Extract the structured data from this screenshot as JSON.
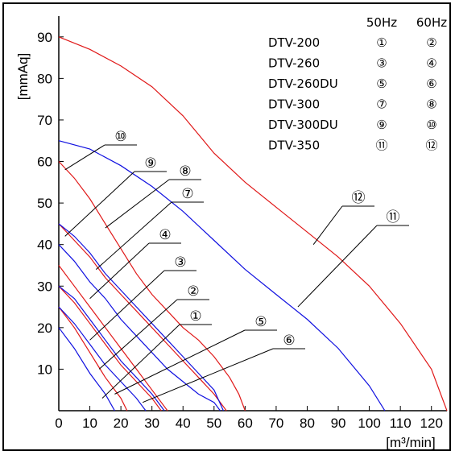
{
  "chart_data": {
    "type": "line",
    "xlabel": "[m³/min]",
    "ylabel": "[mmAq]",
    "xlim": [
      0,
      125
    ],
    "ylim": [
      0,
      95
    ],
    "xticks": [
      0,
      10,
      20,
      30,
      40,
      50,
      60,
      70,
      80,
      90,
      100,
      110,
      120
    ],
    "yticks": [
      10,
      20,
      30,
      40,
      50,
      60,
      70,
      80,
      90
    ],
    "legend": {
      "headers": [
        "50Hz",
        "60Hz"
      ],
      "rows": [
        {
          "model": "DTV-200",
          "hz50": "①",
          "hz60": "②"
        },
        {
          "model": "DTV-260",
          "hz50": "③",
          "hz60": "④"
        },
        {
          "model": "DTV-260DU",
          "hz50": "⑤",
          "hz60": "⑥"
        },
        {
          "model": "DTV-300",
          "hz50": "⑦",
          "hz60": "⑧"
        },
        {
          "model": "DTV-300DU",
          "hz50": "⑨",
          "hz60": "⑩"
        },
        {
          "model": "DTV-350",
          "hz50": "⑪",
          "hz60": "⑫"
        }
      ]
    },
    "colors": {
      "hz50": "#1010e0",
      "hz60": "#e01818"
    },
    "series": [
      {
        "name": "①",
        "color": "blue",
        "points": [
          [
            0,
            20
          ],
          [
            5,
            15
          ],
          [
            10,
            9
          ],
          [
            15,
            4
          ],
          [
            18,
            0
          ]
        ]
      },
      {
        "name": "②",
        "color": "red",
        "points": [
          [
            0,
            25
          ],
          [
            5,
            20
          ],
          [
            10,
            14
          ],
          [
            15,
            8
          ],
          [
            20,
            3
          ],
          [
            22,
            0
          ]
        ]
      },
      {
        "name": "③",
        "color": "blue",
        "points": [
          [
            0,
            25
          ],
          [
            5,
            21
          ],
          [
            10,
            16
          ],
          [
            15,
            11
          ],
          [
            20,
            7
          ],
          [
            25,
            3
          ],
          [
            28,
            0
          ]
        ]
      },
      {
        "name": "④",
        "color": "red",
        "points": [
          [
            0,
            30
          ],
          [
            5,
            26
          ],
          [
            10,
            21
          ],
          [
            15,
            16
          ],
          [
            20,
            11
          ],
          [
            25,
            7
          ],
          [
            30,
            3
          ],
          [
            33,
            0
          ]
        ]
      },
      {
        "name": "⑤",
        "color": "blue",
        "points": [
          [
            0,
            30
          ],
          [
            5,
            27
          ],
          [
            10,
            22
          ],
          [
            15,
            17
          ],
          [
            20,
            12
          ],
          [
            25,
            8
          ],
          [
            30,
            4
          ],
          [
            34,
            0
          ]
        ]
      },
      {
        "name": "⑥",
        "color": "red",
        "points": [
          [
            0,
            35
          ],
          [
            5,
            30
          ],
          [
            10,
            25
          ],
          [
            15,
            20
          ],
          [
            20,
            15
          ],
          [
            25,
            10
          ],
          [
            30,
            5
          ],
          [
            35,
            0
          ]
        ]
      },
      {
        "name": "⑦",
        "color": "blue",
        "points": [
          [
            0,
            40
          ],
          [
            5,
            36
          ],
          [
            10,
            31
          ],
          [
            15,
            27
          ],
          [
            20,
            22
          ],
          [
            25,
            18
          ],
          [
            30,
            14
          ],
          [
            35,
            10
          ],
          [
            40,
            7
          ],
          [
            45,
            4
          ],
          [
            50,
            2
          ],
          [
            52,
            0
          ]
        ]
      },
      {
        "name": "⑧",
        "color": "red",
        "points": [
          [
            0,
            45
          ],
          [
            5,
            41
          ],
          [
            10,
            37
          ],
          [
            15,
            32
          ],
          [
            20,
            28
          ],
          [
            25,
            24
          ],
          [
            30,
            20
          ],
          [
            35,
            16
          ],
          [
            40,
            12
          ],
          [
            45,
            8
          ],
          [
            50,
            4
          ],
          [
            54,
            0
          ]
        ]
      },
      {
        "name": "⑨",
        "color": "blue",
        "points": [
          [
            0,
            45
          ],
          [
            5,
            42
          ],
          [
            10,
            38
          ],
          [
            15,
            33
          ],
          [
            20,
            29
          ],
          [
            25,
            25
          ],
          [
            30,
            21
          ],
          [
            35,
            17
          ],
          [
            40,
            13
          ],
          [
            45,
            9
          ],
          [
            50,
            5
          ],
          [
            53,
            0
          ]
        ]
      },
      {
        "name": "⑩",
        "color": "red",
        "points": [
          [
            0,
            60
          ],
          [
            5,
            56
          ],
          [
            10,
            51
          ],
          [
            15,
            45
          ],
          [
            20,
            39
          ],
          [
            25,
            33
          ],
          [
            30,
            28
          ],
          [
            35,
            24
          ],
          [
            40,
            20
          ],
          [
            45,
            17
          ],
          [
            50,
            13
          ],
          [
            55,
            8
          ],
          [
            58,
            4
          ],
          [
            60,
            0
          ]
        ]
      },
      {
        "name": "⑪",
        "color": "blue",
        "points": [
          [
            0,
            65
          ],
          [
            10,
            63
          ],
          [
            20,
            59
          ],
          [
            30,
            54
          ],
          [
            40,
            48
          ],
          [
            50,
            41
          ],
          [
            60,
            34
          ],
          [
            70,
            28
          ],
          [
            80,
            22
          ],
          [
            90,
            15
          ],
          [
            100,
            6
          ],
          [
            105,
            0
          ]
        ]
      },
      {
        "name": "⑫",
        "color": "red",
        "points": [
          [
            0,
            90
          ],
          [
            10,
            87
          ],
          [
            20,
            83
          ],
          [
            30,
            78
          ],
          [
            40,
            71
          ],
          [
            50,
            62
          ],
          [
            60,
            55
          ],
          [
            70,
            49
          ],
          [
            80,
            43
          ],
          [
            90,
            37
          ],
          [
            100,
            30
          ],
          [
            110,
            21
          ],
          [
            120,
            10
          ],
          [
            125,
            0
          ]
        ]
      }
    ],
    "callouts": [
      {
        "label": "⑩",
        "target": [
          2,
          58
        ]
      },
      {
        "label": "⑨",
        "target": [
          2,
          42
        ]
      },
      {
        "label": "⑧",
        "target": [
          15,
          44
        ]
      },
      {
        "label": "⑦",
        "target": [
          12,
          34
        ]
      },
      {
        "label": "④",
        "target": [
          10,
          27
        ]
      },
      {
        "label": "③",
        "target": [
          10,
          17
        ]
      },
      {
        "label": "②",
        "target": [
          13,
          10
        ]
      },
      {
        "label": "①",
        "target": [
          14,
          3
        ]
      },
      {
        "label": "⑤",
        "target": [
          18,
          4
        ]
      },
      {
        "label": "⑥",
        "target": [
          27,
          2
        ]
      },
      {
        "label": "⑪",
        "target": [
          77,
          25
        ]
      },
      {
        "label": "⑫",
        "target": [
          82,
          40
        ]
      }
    ]
  }
}
